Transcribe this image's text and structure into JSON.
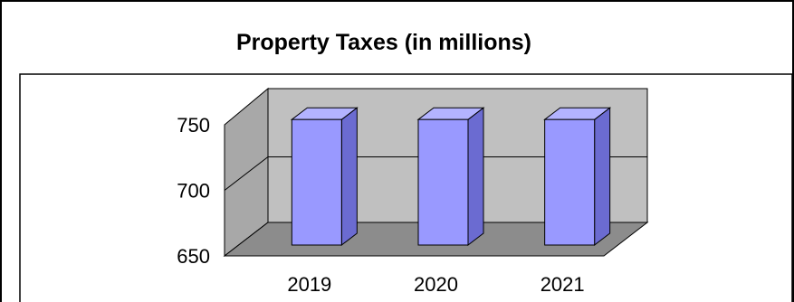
{
  "chart_data": {
    "type": "bar",
    "title": "Property Taxes (in millions)",
    "categories": [
      "2019",
      "2020",
      "2021"
    ],
    "values": [
      754,
      754,
      754
    ],
    "xlabel": "",
    "ylabel": "",
    "ylim": [
      650,
      750
    ],
    "yticks": [
      "750",
      "700",
      "650"
    ],
    "grid": true,
    "legend": "none",
    "style": "3d-column",
    "colors": {
      "bar_front": "#9999ff",
      "bar_side": "#6b6bd1",
      "bar_top": "#b3b3ff",
      "wall": "#c0c0c0",
      "side_wall": "#a8a8a8",
      "floor": "#8c8c8c"
    }
  }
}
